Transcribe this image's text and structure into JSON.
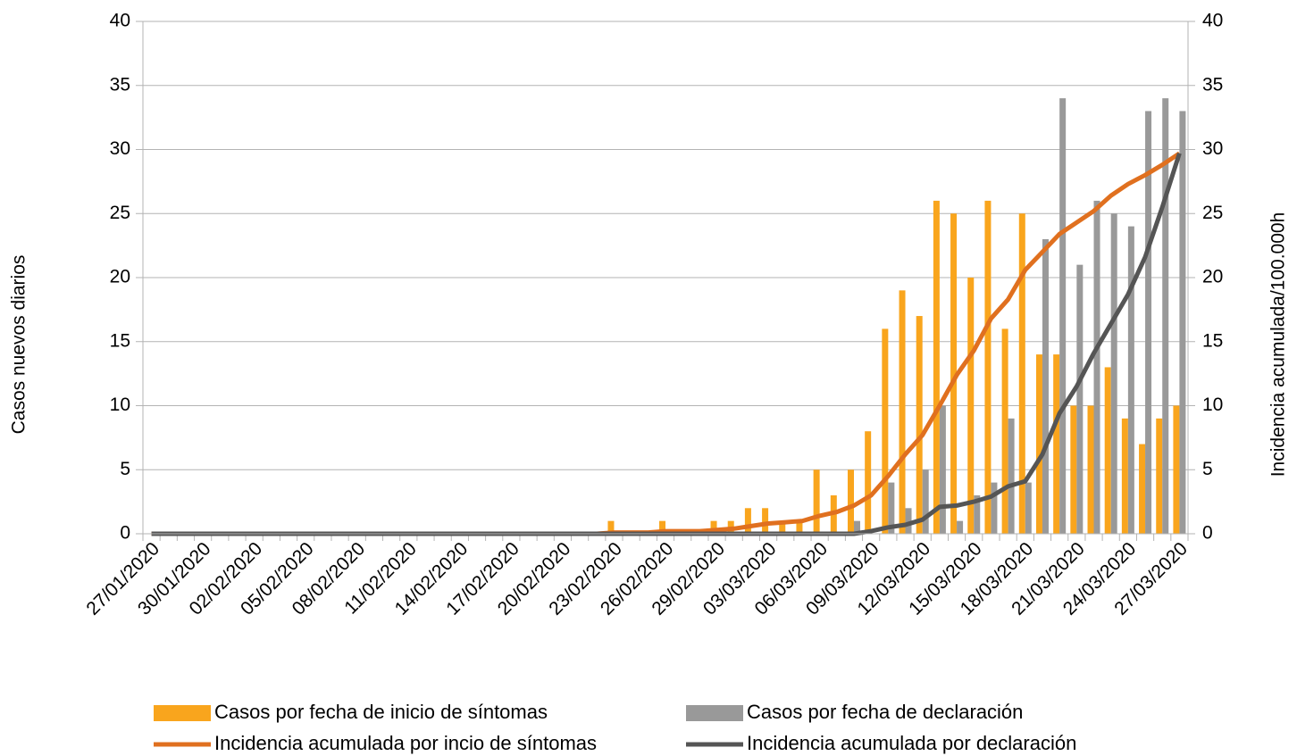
{
  "chart_data": {
    "type": "bar",
    "categories": [
      "27/01/2020",
      null,
      null,
      "30/01/2020",
      null,
      null,
      "02/02/2020",
      null,
      null,
      "05/02/2020",
      null,
      null,
      "08/02/2020",
      null,
      null,
      "11/02/2020",
      null,
      null,
      "14/02/2020",
      null,
      null,
      "17/02/2020",
      null,
      null,
      "20/02/2020",
      null,
      null,
      "23/02/2020",
      null,
      null,
      "26/02/2020",
      null,
      null,
      "29/02/2020",
      null,
      null,
      "03/03/2020",
      null,
      null,
      "06/03/2020",
      null,
      null,
      "09/03/2020",
      null,
      null,
      "12/03/2020",
      null,
      null,
      "15/03/2020",
      null,
      null,
      "18/03/2020",
      null,
      null,
      "21/03/2020",
      null,
      null,
      "24/03/2020",
      null,
      null,
      "27/03/2020"
    ],
    "series": [
      {
        "name": "Casos por fecha de inicio de síntomas",
        "type": "bar",
        "color": "#f9a51d",
        "values": [
          0,
          0,
          0,
          0,
          0,
          0,
          0,
          0,
          0,
          0,
          0,
          0,
          0,
          0,
          0,
          0,
          0,
          0,
          0,
          0,
          0,
          0,
          0,
          0,
          0,
          0,
          0,
          1,
          0,
          0,
          1,
          0,
          0,
          1,
          1,
          2,
          2,
          1,
          1,
          5,
          3,
          5,
          8,
          16,
          19,
          17,
          26,
          25,
          20,
          26,
          16,
          25,
          14,
          14,
          10,
          10,
          13,
          9,
          7,
          9,
          10
        ]
      },
      {
        "name": "Casos por fecha de declaración",
        "type": "bar",
        "color": "#999999",
        "values": [
          0,
          0,
          0,
          0,
          0,
          0,
          0,
          0,
          0,
          0,
          0,
          0,
          0,
          0,
          0,
          0,
          0,
          0,
          0,
          0,
          0,
          0,
          0,
          0,
          0,
          0,
          0,
          0,
          0,
          0,
          0,
          0,
          0,
          0,
          0,
          0,
          0,
          0,
          0,
          0,
          0,
          1,
          0,
          4,
          2,
          5,
          10,
          1,
          3,
          4,
          9,
          4,
          23,
          34,
          21,
          26,
          25,
          24,
          33,
          34,
          33
        ]
      },
      {
        "name": "Incidencia acumulada por incio de síntomas",
        "type": "line",
        "axis": "y2",
        "color": "#e0701f",
        "values": [
          0,
          0,
          0,
          0,
          0,
          0,
          0,
          0,
          0,
          0,
          0,
          0,
          0,
          0,
          0,
          0,
          0,
          0,
          0,
          0,
          0,
          0,
          0,
          0,
          0,
          0,
          0,
          0.1,
          0.1,
          0.1,
          0.2,
          0.2,
          0.2,
          0.3,
          0.4,
          0.6,
          0.8,
          0.9,
          1.0,
          1.4,
          1.7,
          2.2,
          3.0,
          4.5,
          6.2,
          7.7,
          10,
          12.4,
          14.3,
          16.8,
          18.3,
          20.6,
          22,
          23.4,
          24.3,
          25.2,
          26.4,
          27.3,
          28,
          28.8,
          29.7
        ]
      },
      {
        "name": "Incidencia acumulada por declaración",
        "type": "line",
        "axis": "y2",
        "color": "#555555",
        "values": [
          0,
          0,
          0,
          0,
          0,
          0,
          0,
          0,
          0,
          0,
          0,
          0,
          0,
          0,
          0,
          0,
          0,
          0,
          0,
          0,
          0,
          0,
          0,
          0,
          0,
          0,
          0,
          0,
          0,
          0,
          0,
          0,
          0,
          0,
          0,
          0,
          0,
          0,
          0,
          0,
          0,
          0,
          0.2,
          0.5,
          0.7,
          1.1,
          2.1,
          2.2,
          2.5,
          2.9,
          3.7,
          4.1,
          6.2,
          9.4,
          11.5,
          14.1,
          16.4,
          18.7,
          21.6,
          25.5,
          29.7
        ]
      }
    ],
    "ylabel": "Casos nuevos diarios",
    "y2label": "Incidencia acumulada/100.000h",
    "ylim": [
      0,
      40
    ],
    "yticks": [
      0,
      5,
      10,
      15,
      20,
      25,
      30,
      35,
      40
    ],
    "y2lim": [
      0,
      40
    ],
    "y2ticks": [
      0,
      5,
      10,
      15,
      20,
      25,
      30,
      35,
      40
    ],
    "grid": true,
    "legend": "bottom"
  }
}
